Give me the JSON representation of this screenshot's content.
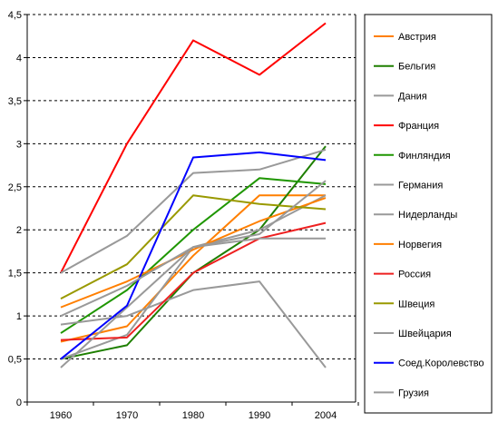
{
  "chart_data": {
    "type": "line",
    "categories": [
      "1960",
      "1970",
      "1980",
      "1990",
      "2004"
    ],
    "ylim": [
      0,
      4.5
    ],
    "y_ticks": [
      "0",
      "0,5",
      "1",
      "1,5",
      "2",
      "2,5",
      "3",
      "3,5",
      "4",
      "4,5"
    ],
    "grid": "horizontal dashed",
    "legend_position": "right",
    "series": [
      {
        "name": "Австрия",
        "color": "#ff7f00",
        "values": [
          0.7,
          0.88,
          1.7,
          2.4,
          2.4
        ]
      },
      {
        "name": "Бельгия",
        "color": "#1e7f00",
        "values": [
          0.5,
          0.66,
          1.5,
          2.0,
          2.97
        ]
      },
      {
        "name": "Дания",
        "color": "#999999",
        "values": [
          0.5,
          0.78,
          1.8,
          2.0,
          2.4
        ]
      },
      {
        "name": "Франция",
        "color": "#ff0000",
        "values": [
          1.5,
          3.0,
          4.2,
          3.8,
          4.4
        ]
      },
      {
        "name": "Финляндия",
        "color": "#1e9600",
        "values": [
          0.8,
          1.3,
          2.0,
          2.6,
          2.53
        ]
      },
      {
        "name": "Германия",
        "color": "#999999",
        "values": [
          1.5,
          1.93,
          2.66,
          2.7,
          2.93
        ]
      },
      {
        "name": "Нидерланды",
        "color": "#999999",
        "values": [
          0.9,
          1.0,
          1.3,
          1.4,
          0.4
        ]
      },
      {
        "name": "Норвегия",
        "color": "#ff7f00",
        "values": [
          1.1,
          1.4,
          1.77,
          2.1,
          2.37
        ]
      },
      {
        "name": "Россия",
        "color": "#ee2020",
        "values": [
          0.72,
          0.75,
          1.5,
          1.9,
          2.08
        ]
      },
      {
        "name": "Швеция",
        "color": "#999900",
        "values": [
          1.2,
          1.6,
          2.4,
          2.3,
          2.24
        ]
      },
      {
        "name": "Швейцария",
        "color": "#999999",
        "values": [
          0.4,
          1.1,
          1.8,
          1.9,
          1.9
        ]
      },
      {
        "name": "Соед.Королевство",
        "color": "#0000ff",
        "values": [
          0.5,
          1.12,
          2.84,
          2.9,
          2.81
        ]
      },
      {
        "name": "Грузия",
        "color": "#999999",
        "values": [
          1.0,
          1.35,
          1.8,
          1.95,
          2.57
        ]
      }
    ]
  }
}
